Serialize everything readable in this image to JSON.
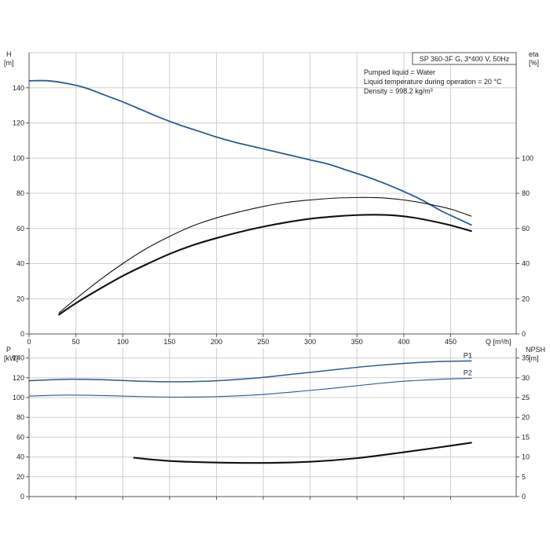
{
  "chart_data": [
    {
      "type": "line",
      "title": "SP 360-3F G, 3*400 V, 50Hz",
      "notes": [
        "Pumped liquid = Water",
        "Liquid temperature during operation = 20 °C",
        "Density = 998.2 kg/m³"
      ],
      "xlabel": "Q [m³/h]",
      "xlim": [
        0,
        520
      ],
      "xticks": [
        0,
        50,
        100,
        150,
        200,
        250,
        300,
        350,
        400,
        450
      ],
      "y_left": {
        "label": "H",
        "unit": "[m]",
        "ylim": [
          0,
          160
        ],
        "ticks": [
          0,
          20,
          40,
          60,
          80,
          100,
          120,
          140
        ]
      },
      "y_right": {
        "label": "eta",
        "unit": "[%]",
        "ylim": [
          0,
          160
        ],
        "ticks": [
          0,
          20,
          40,
          60,
          80,
          100
        ]
      },
      "grid": true,
      "series": [
        {
          "axis": "left",
          "color": "#2a5a95",
          "x": [
            0,
            20,
            40,
            60,
            80,
            100,
            120,
            140,
            160,
            180,
            200,
            220,
            240,
            260,
            280,
            300,
            320,
            340,
            360,
            380,
            400,
            420,
            440,
            460,
            472
          ],
          "y": [
            144,
            144,
            142.5,
            140,
            136,
            132,
            127.5,
            123,
            119,
            115.5,
            112,
            109,
            106.5,
            104,
            101.5,
            99,
            96.5,
            93,
            89.5,
            85.5,
            81,
            76,
            70,
            65,
            62
          ]
        },
        {
          "axis": "right",
          "color": "#111111",
          "x": [
            32,
            50,
            75,
            100,
            125,
            150,
            175,
            200,
            225,
            250,
            275,
            300,
            325,
            350,
            365,
            380,
            400,
            425,
            450,
            472
          ],
          "y": [
            12,
            20,
            30.5,
            40,
            48.5,
            55.5,
            61.5,
            66,
            69.5,
            72.5,
            74.8,
            76.2,
            77.2,
            77.6,
            77.6,
            77.3,
            76.2,
            74,
            71,
            67
          ]
        },
        {
          "axis": "right",
          "color": "#111111",
          "x": [
            32,
            50,
            75,
            100,
            125,
            150,
            175,
            200,
            225,
            250,
            275,
            300,
            325,
            350,
            370,
            390,
            410,
            430,
            450,
            472
          ],
          "y": [
            11,
            17.5,
            25.5,
            33,
            39.5,
            45.5,
            50.5,
            54.5,
            58,
            61,
            63.5,
            65.5,
            66.8,
            67.6,
            67.8,
            67.4,
            66.2,
            64.2,
            61.8,
            58.5
          ]
        }
      ]
    },
    {
      "type": "line",
      "xlim": [
        0,
        520
      ],
      "xticks": [
        0,
        50,
        100,
        150,
        200,
        250,
        300,
        350,
        400,
        450
      ],
      "y_left": {
        "label": "P",
        "unit": "[kW]",
        "ylim": [
          0,
          150
        ],
        "ticks": [
          0,
          20,
          40,
          60,
          80,
          100,
          120,
          140
        ]
      },
      "y_right": {
        "label": "NPSH",
        "unit": "[m]",
        "ylim": [
          0,
          37.5
        ],
        "ticks": [
          0,
          5,
          10,
          15,
          20,
          25,
          30,
          35
        ]
      },
      "grid": true,
      "series": [
        {
          "name": "P1",
          "axis": "left",
          "color": "#2a5a95",
          "x": [
            0,
            40,
            80,
            120,
            160,
            200,
            240,
            280,
            320,
            360,
            400,
            440,
            472
          ],
          "y": [
            117,
            118.5,
            118,
            116.5,
            116,
            117,
            119.5,
            123.5,
            127.5,
            131.5,
            134.5,
            136.5,
            137
          ]
        },
        {
          "name": "P2",
          "axis": "left",
          "color": "#2a5a95",
          "x": [
            0,
            40,
            80,
            120,
            160,
            200,
            240,
            280,
            320,
            360,
            400,
            440,
            472
          ],
          "y": [
            101.5,
            102.5,
            102,
            101,
            100.5,
            101,
            102.5,
            105.5,
            109,
            113,
            116.5,
            118.5,
            119.5
          ]
        },
        {
          "axis": "right",
          "color": "#111111",
          "x": [
            112,
            150,
            200,
            250,
            300,
            350,
            400,
            440,
            472
          ],
          "y": [
            9.8,
            9,
            8.6,
            8.5,
            8.8,
            9.7,
            11.2,
            12.5,
            13.6
          ]
        }
      ]
    }
  ]
}
